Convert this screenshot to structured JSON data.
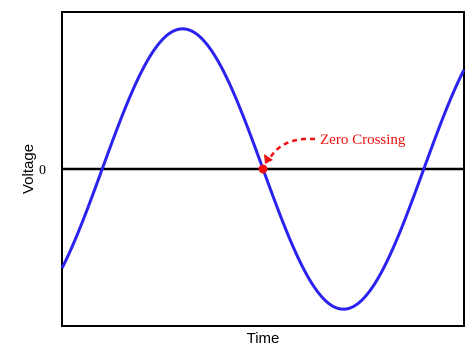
{
  "chart_data": {
    "type": "line",
    "xlabel": "Time",
    "ylabel": "Voltage",
    "xlim": [
      0,
      1.25
    ],
    "ylim": [
      -1.12,
      1.12
    ],
    "y_ticks": [
      {
        "value": 0,
        "label": "0"
      }
    ],
    "show_x_ticks": false,
    "grid": false,
    "series": [
      {
        "color": "#2b22ee",
        "function": "sine",
        "amplitude": 1,
        "period": 1,
        "phase_x": 0.125,
        "x": [
          0,
          0.125,
          0.25,
          0.375,
          0.5,
          0.625,
          0.75,
          0.875,
          1.0,
          1.125,
          1.25
        ],
        "values": [
          -0.71,
          0,
          0.71,
          1,
          0.71,
          0,
          -0.71,
          -1,
          -0.71,
          0,
          0.71
        ]
      }
    ],
    "annotations": [
      {
        "text": "Zero Crossing",
        "color": "#ee1111",
        "point_x": 0.625,
        "point_y": 0
      }
    ]
  }
}
